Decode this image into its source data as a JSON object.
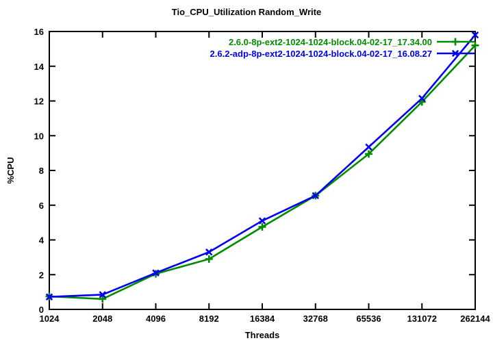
{
  "title": "Tio_CPU_Utilization Random_Write",
  "chart_data": {
    "type": "line",
    "title": "Tio_CPU_Utilization Random_Write",
    "xlabel": "Threads",
    "ylabel": "%CPU",
    "x_scale": "log2",
    "x": [
      1024,
      2048,
      4096,
      8192,
      16384,
      32768,
      65536,
      131072,
      262144
    ],
    "x_tick_labels": [
      "1024",
      "2048",
      "4096",
      "8192",
      "16384",
      "32768",
      "65536",
      "131072",
      "262144"
    ],
    "ylim": [
      0,
      16
    ],
    "y_ticks": [
      0,
      2,
      4,
      6,
      8,
      10,
      12,
      14,
      16
    ],
    "y_tick_labels": [
      "0",
      "2",
      "4",
      "6",
      "8",
      "10",
      "12",
      "14",
      "16"
    ],
    "grid": false,
    "legend_position": "top-right-inside",
    "series": [
      {
        "name": "2.6.0-8p-ext2-1024-1024-block.04-02-17_17.34.00",
        "color": "#008C00",
        "marker": "plus",
        "values": [
          0.75,
          0.6,
          2.05,
          2.9,
          4.75,
          6.55,
          8.95,
          11.95,
          15.2
        ]
      },
      {
        "name": "2.6.2-adp-8p-ext2-1024-1024-block.04-02-17_16.08.27",
        "color": "#0000EE",
        "marker": "x",
        "values": [
          0.72,
          0.85,
          2.1,
          3.3,
          5.1,
          6.55,
          9.35,
          12.15,
          15.8
        ]
      }
    ]
  },
  "colors": {
    "axis": "#000000",
    "background": "#ffffff",
    "text": "#000000"
  }
}
